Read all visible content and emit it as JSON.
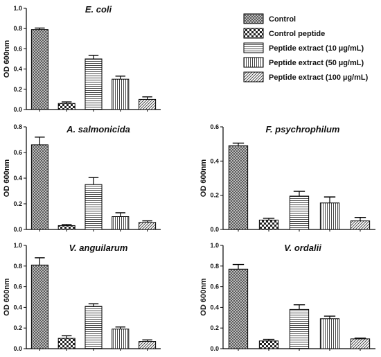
{
  "legend": [
    {
      "name": "Control",
      "pattern": "crosshatch"
    },
    {
      "name": "Control peptide",
      "pattern": "checker"
    },
    {
      "name": "Peptide extract (10 µg/mL)",
      "pattern": "hlines"
    },
    {
      "name": "Peptide extract (50 µg/mL)",
      "pattern": "vlines"
    },
    {
      "name": "Peptide extract (100 µg/mL)",
      "pattern": "diag"
    }
  ],
  "chart_data": [
    {
      "type": "bar",
      "title": "E. coli",
      "ylabel": "OD 600nm",
      "ylim": [
        0,
        1.0
      ],
      "yticks": [
        "0.0",
        "0.2",
        "0.4",
        "0.6",
        "0.8",
        "1.0"
      ],
      "categories": [
        "Control",
        "Control peptide",
        "Peptide extract (10 µg/mL)",
        "Peptide extract (50 µg/mL)",
        "Peptide extract (100 µg/mL)"
      ],
      "values": [
        0.79,
        0.06,
        0.5,
        0.3,
        0.1
      ],
      "errors": [
        0.015,
        0.015,
        0.035,
        0.03,
        0.025
      ]
    },
    {
      "type": "bar",
      "title": "A. salmonicida",
      "ylabel": "OD 600nm",
      "ylim": [
        0,
        0.8
      ],
      "yticks": [
        "0.0",
        "0.2",
        "0.4",
        "0.6",
        "0.8"
      ],
      "categories": [
        "Control",
        "Control peptide",
        "Peptide extract (10 µg/mL)",
        "Peptide extract (50 µg/mL)",
        "Peptide extract (100 µg/mL)"
      ],
      "values": [
        0.66,
        0.03,
        0.35,
        0.1,
        0.055
      ],
      "errors": [
        0.06,
        0.008,
        0.055,
        0.03,
        0.012
      ]
    },
    {
      "type": "bar",
      "title": "F. psychrophilum",
      "ylabel": "OD 600nm",
      "ylim": [
        0,
        0.6
      ],
      "yticks": [
        "0.0",
        "0.2",
        "0.4",
        "0.6"
      ],
      "categories": [
        "Control",
        "Control peptide",
        "Peptide extract (10 µg/mL)",
        "Peptide extract (50 µg/mL)",
        "Peptide extract (100 µg/mL)"
      ],
      "values": [
        0.49,
        0.055,
        0.195,
        0.155,
        0.05
      ],
      "errors": [
        0.015,
        0.01,
        0.028,
        0.035,
        0.02
      ]
    },
    {
      "type": "bar",
      "title": "V. anguilarum",
      "ylabel": "OD 600nm",
      "ylim": [
        0,
        1.0
      ],
      "yticks": [
        "0.0",
        "0.2",
        "0.4",
        "0.6",
        "0.8",
        "1.0"
      ],
      "categories": [
        "Control",
        "Control peptide",
        "Peptide extract (10 µg/mL)",
        "Peptide extract (50 µg/mL)",
        "Peptide extract (100 µg/mL)"
      ],
      "values": [
        0.81,
        0.1,
        0.41,
        0.19,
        0.07
      ],
      "errors": [
        0.07,
        0.025,
        0.025,
        0.02,
        0.015
      ]
    },
    {
      "type": "bar",
      "title": "V. ordalii",
      "ylabel": "OD 600nm",
      "ylim": [
        0,
        1.0
      ],
      "yticks": [
        "0.0",
        "0.2",
        "0.4",
        "0.6",
        "0.8",
        "1.0"
      ],
      "categories": [
        "Control",
        "Control peptide",
        "Peptide extract (10 µg/mL)",
        "Peptide extract (50 µg/mL)",
        "Peptide extract (100 µg/mL)"
      ],
      "values": [
        0.77,
        0.075,
        0.38,
        0.29,
        0.095
      ],
      "errors": [
        0.045,
        0.015,
        0.045,
        0.025,
        0.008
      ]
    }
  ]
}
